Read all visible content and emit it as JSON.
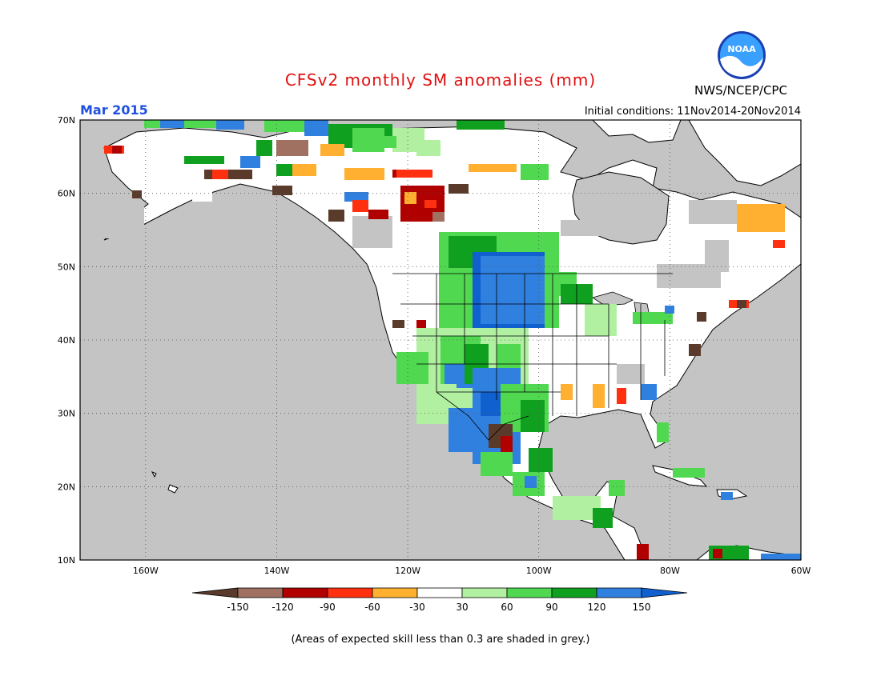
{
  "title": "CFSv2 monthly SM anomalies (mm)",
  "valid_month": "Mar 2015",
  "initial_conditions": "Initial conditions: 11Nov2014-20Nov2014",
  "agency": "NWS/NCEP/CPC",
  "logo_text": "NOAA",
  "footnote": "(Areas of expected skill less than 0.3 are shaded in grey.)",
  "lat_labels": [
    "70N",
    "60N",
    "50N",
    "40N",
    "30N",
    "20N",
    "10N"
  ],
  "lon_labels": [
    "160W",
    "140W",
    "120W",
    "100W",
    "80W",
    "60W"
  ],
  "colorbar": {
    "ticks": [
      "-150",
      "-120",
      "-90",
      "-60",
      "-30",
      "30",
      "60",
      "90",
      "120",
      "150"
    ],
    "colors": [
      "#5a3a2a",
      "#a07060",
      "#b00000",
      "#ff3010",
      "#ffb030",
      "#ffffff",
      "#b0f0a0",
      "#50d850",
      "#10a020",
      "#3080e0",
      "#1060d0"
    ]
  },
  "colors": {
    "background_grey": "#c4c4c4",
    "title_red": "#e01010",
    "month_blue": "#2050e0"
  }
}
